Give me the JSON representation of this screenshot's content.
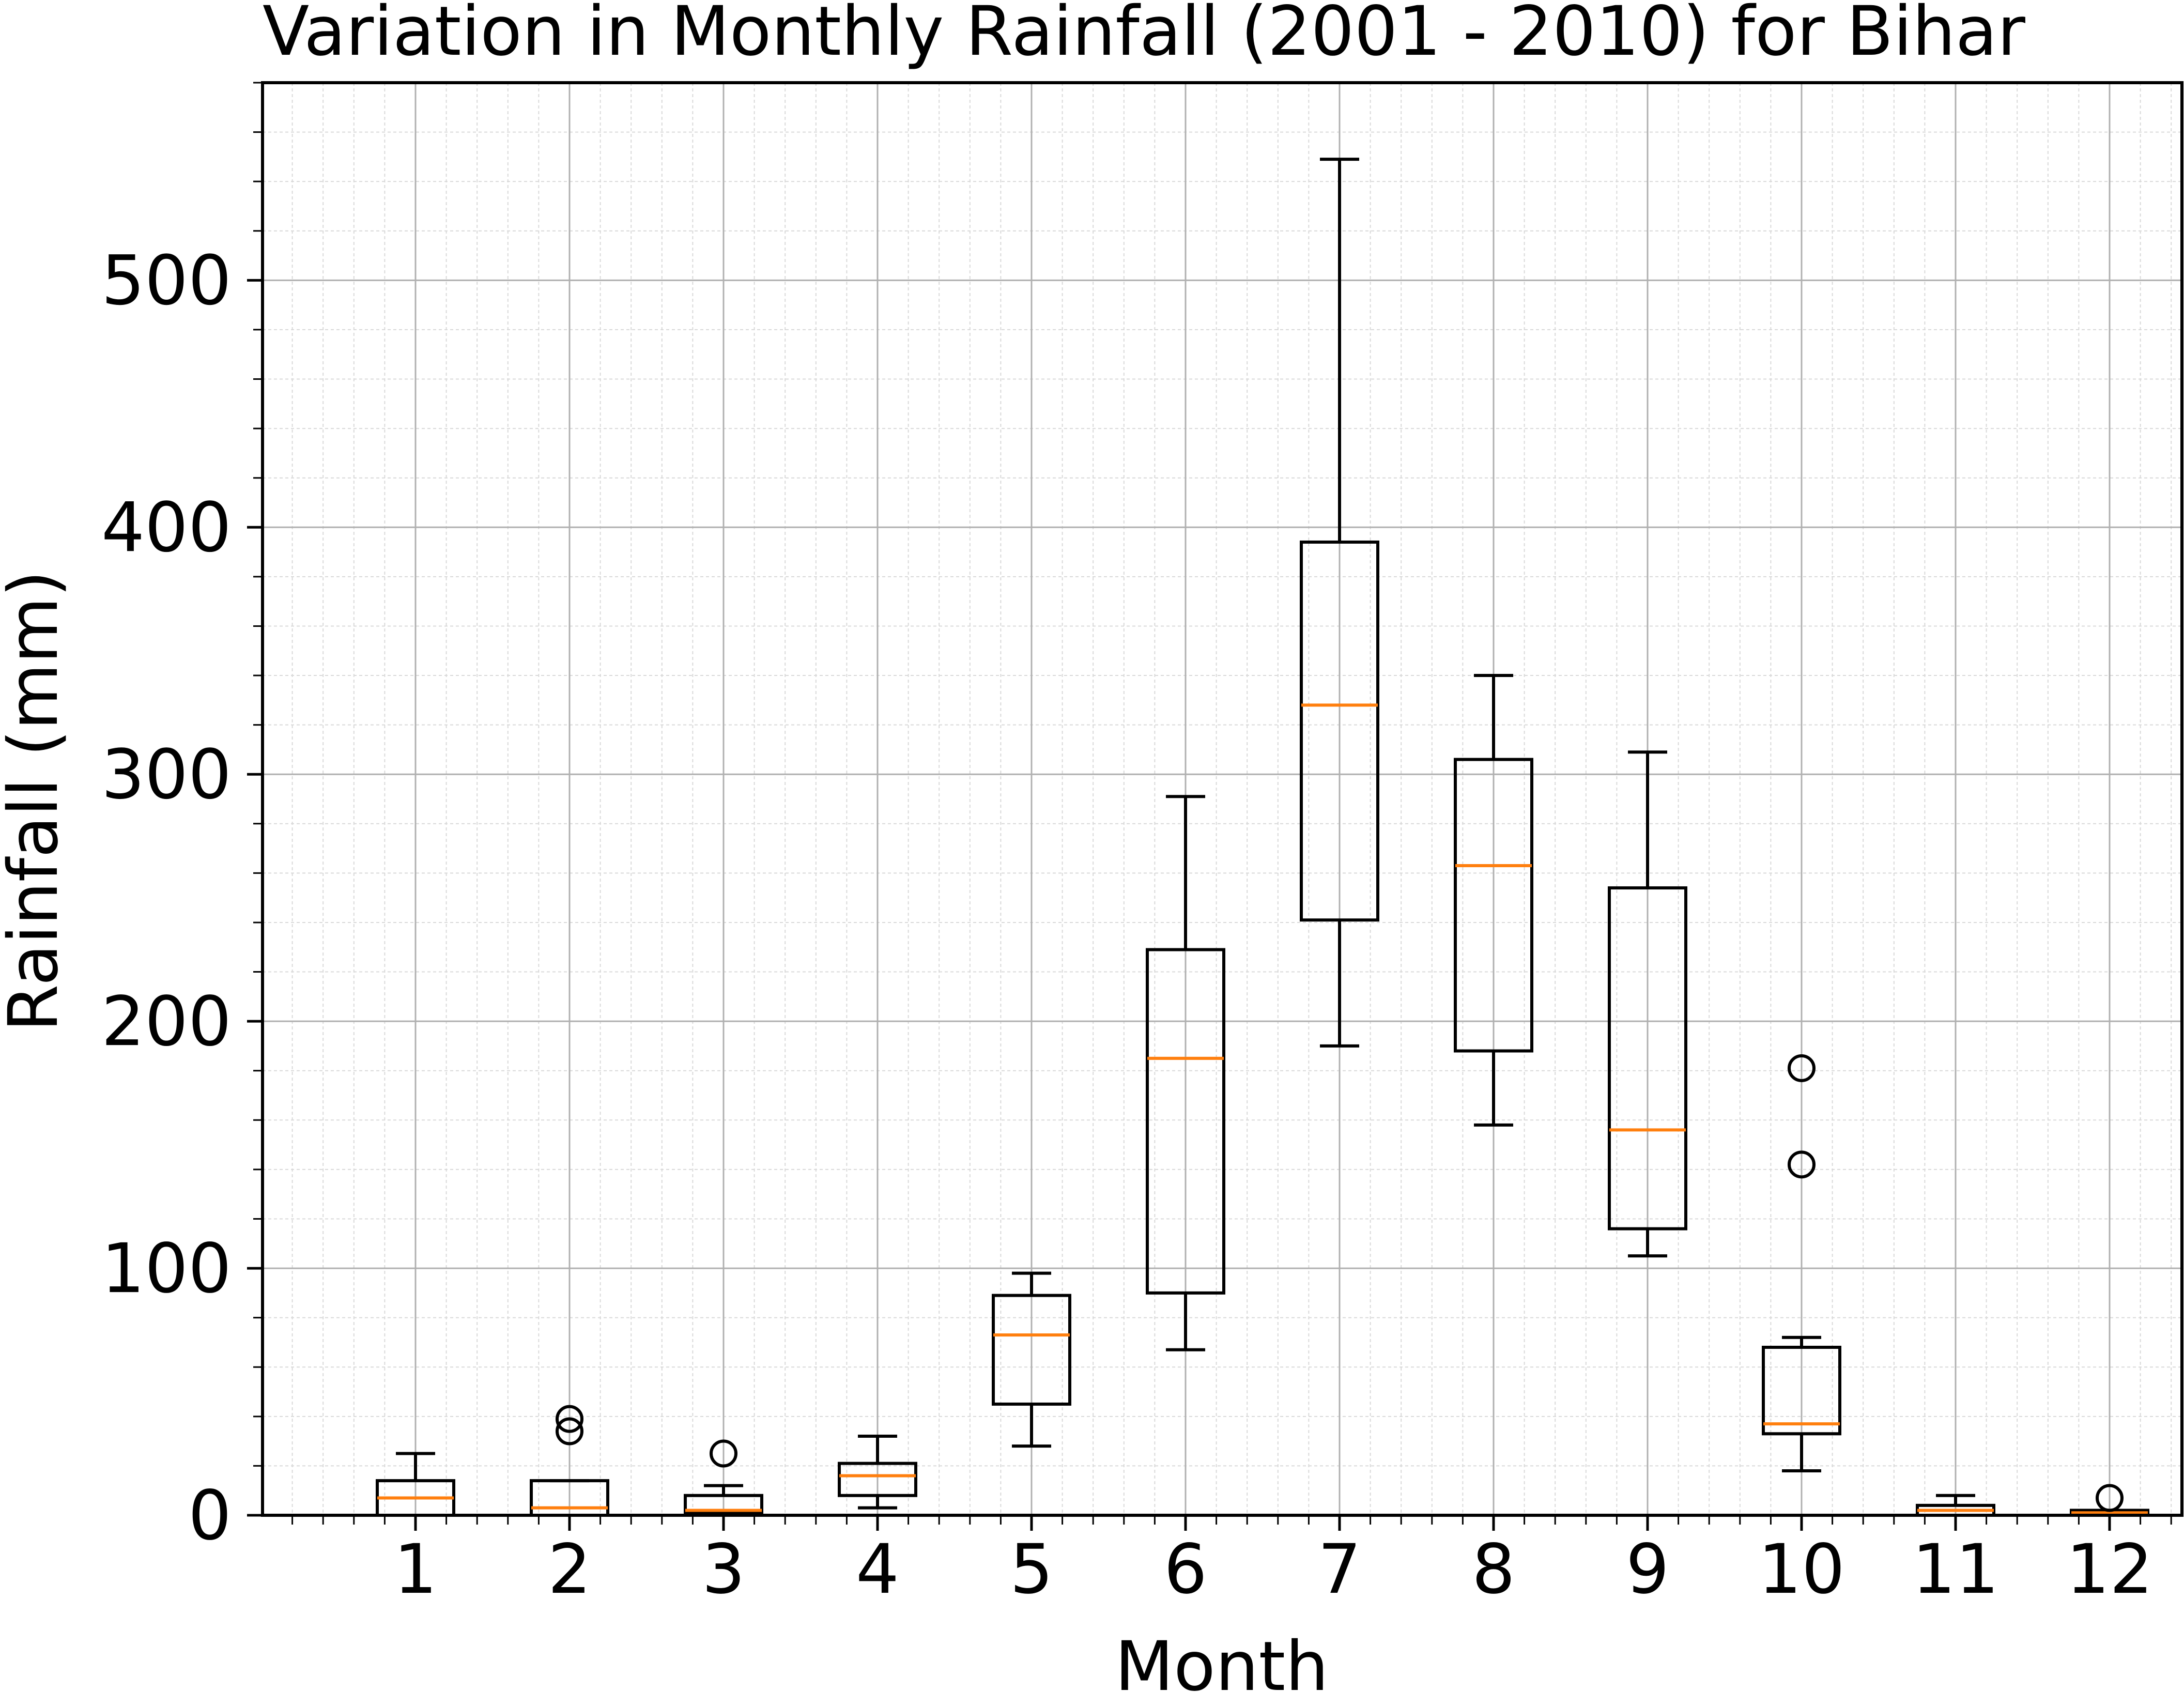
{
  "chart_data": {
    "type": "boxplot",
    "title": "Variation in Monthly Rainfall (2001 - 2010) for Bihar",
    "xlabel": "Month",
    "ylabel": "Rainfall (mm)",
    "categories": [
      "1",
      "2",
      "3",
      "4",
      "5",
      "6",
      "7",
      "8",
      "9",
      "10",
      "11",
      "12"
    ],
    "ylim": [
      0,
      580
    ],
    "yticks": [
      0,
      100,
      200,
      300,
      400,
      500
    ],
    "grid": true,
    "minor_grid": true,
    "box_color": "#000000",
    "median_color": "#ff7f0e",
    "boxes": [
      {
        "month": "1",
        "whisker_low": 0,
        "q1": 0,
        "median": 7,
        "q3": 14,
        "whisker_high": 25,
        "outliers": []
      },
      {
        "month": "2",
        "whisker_low": 0,
        "q1": 0,
        "median": 3,
        "q3": 14,
        "whisker_high": 14,
        "outliers": [
          34,
          39
        ]
      },
      {
        "month": "3",
        "whisker_low": 0,
        "q1": 1,
        "median": 2,
        "q3": 8,
        "whisker_high": 12,
        "outliers": [
          25
        ]
      },
      {
        "month": "4",
        "whisker_low": 3,
        "q1": 8,
        "median": 16,
        "q3": 21,
        "whisker_high": 32,
        "outliers": []
      },
      {
        "month": "5",
        "whisker_low": 28,
        "q1": 45,
        "median": 73,
        "q3": 89,
        "whisker_high": 98,
        "outliers": []
      },
      {
        "month": "6",
        "whisker_low": 67,
        "q1": 90,
        "median": 185,
        "q3": 229,
        "whisker_high": 291,
        "outliers": []
      },
      {
        "month": "7",
        "whisker_low": 190,
        "q1": 241,
        "median": 328,
        "q3": 394,
        "whisker_high": 549,
        "outliers": []
      },
      {
        "month": "8",
        "whisker_low": 158,
        "q1": 188,
        "median": 263,
        "q3": 306,
        "whisker_high": 340,
        "outliers": []
      },
      {
        "month": "9",
        "whisker_low": 105,
        "q1": 116,
        "median": 156,
        "q3": 254,
        "whisker_high": 309,
        "outliers": []
      },
      {
        "month": "10",
        "whisker_low": 18,
        "q1": 33,
        "median": 37,
        "q3": 68,
        "whisker_high": 72,
        "outliers": [
          142,
          181
        ]
      },
      {
        "month": "11",
        "whisker_low": 0,
        "q1": 0,
        "median": 2,
        "q3": 4,
        "whisker_high": 8,
        "outliers": []
      },
      {
        "month": "12",
        "whisker_low": 0,
        "q1": 0,
        "median": 1,
        "q3": 2,
        "whisker_high": 2,
        "outliers": [
          7
        ]
      }
    ]
  }
}
